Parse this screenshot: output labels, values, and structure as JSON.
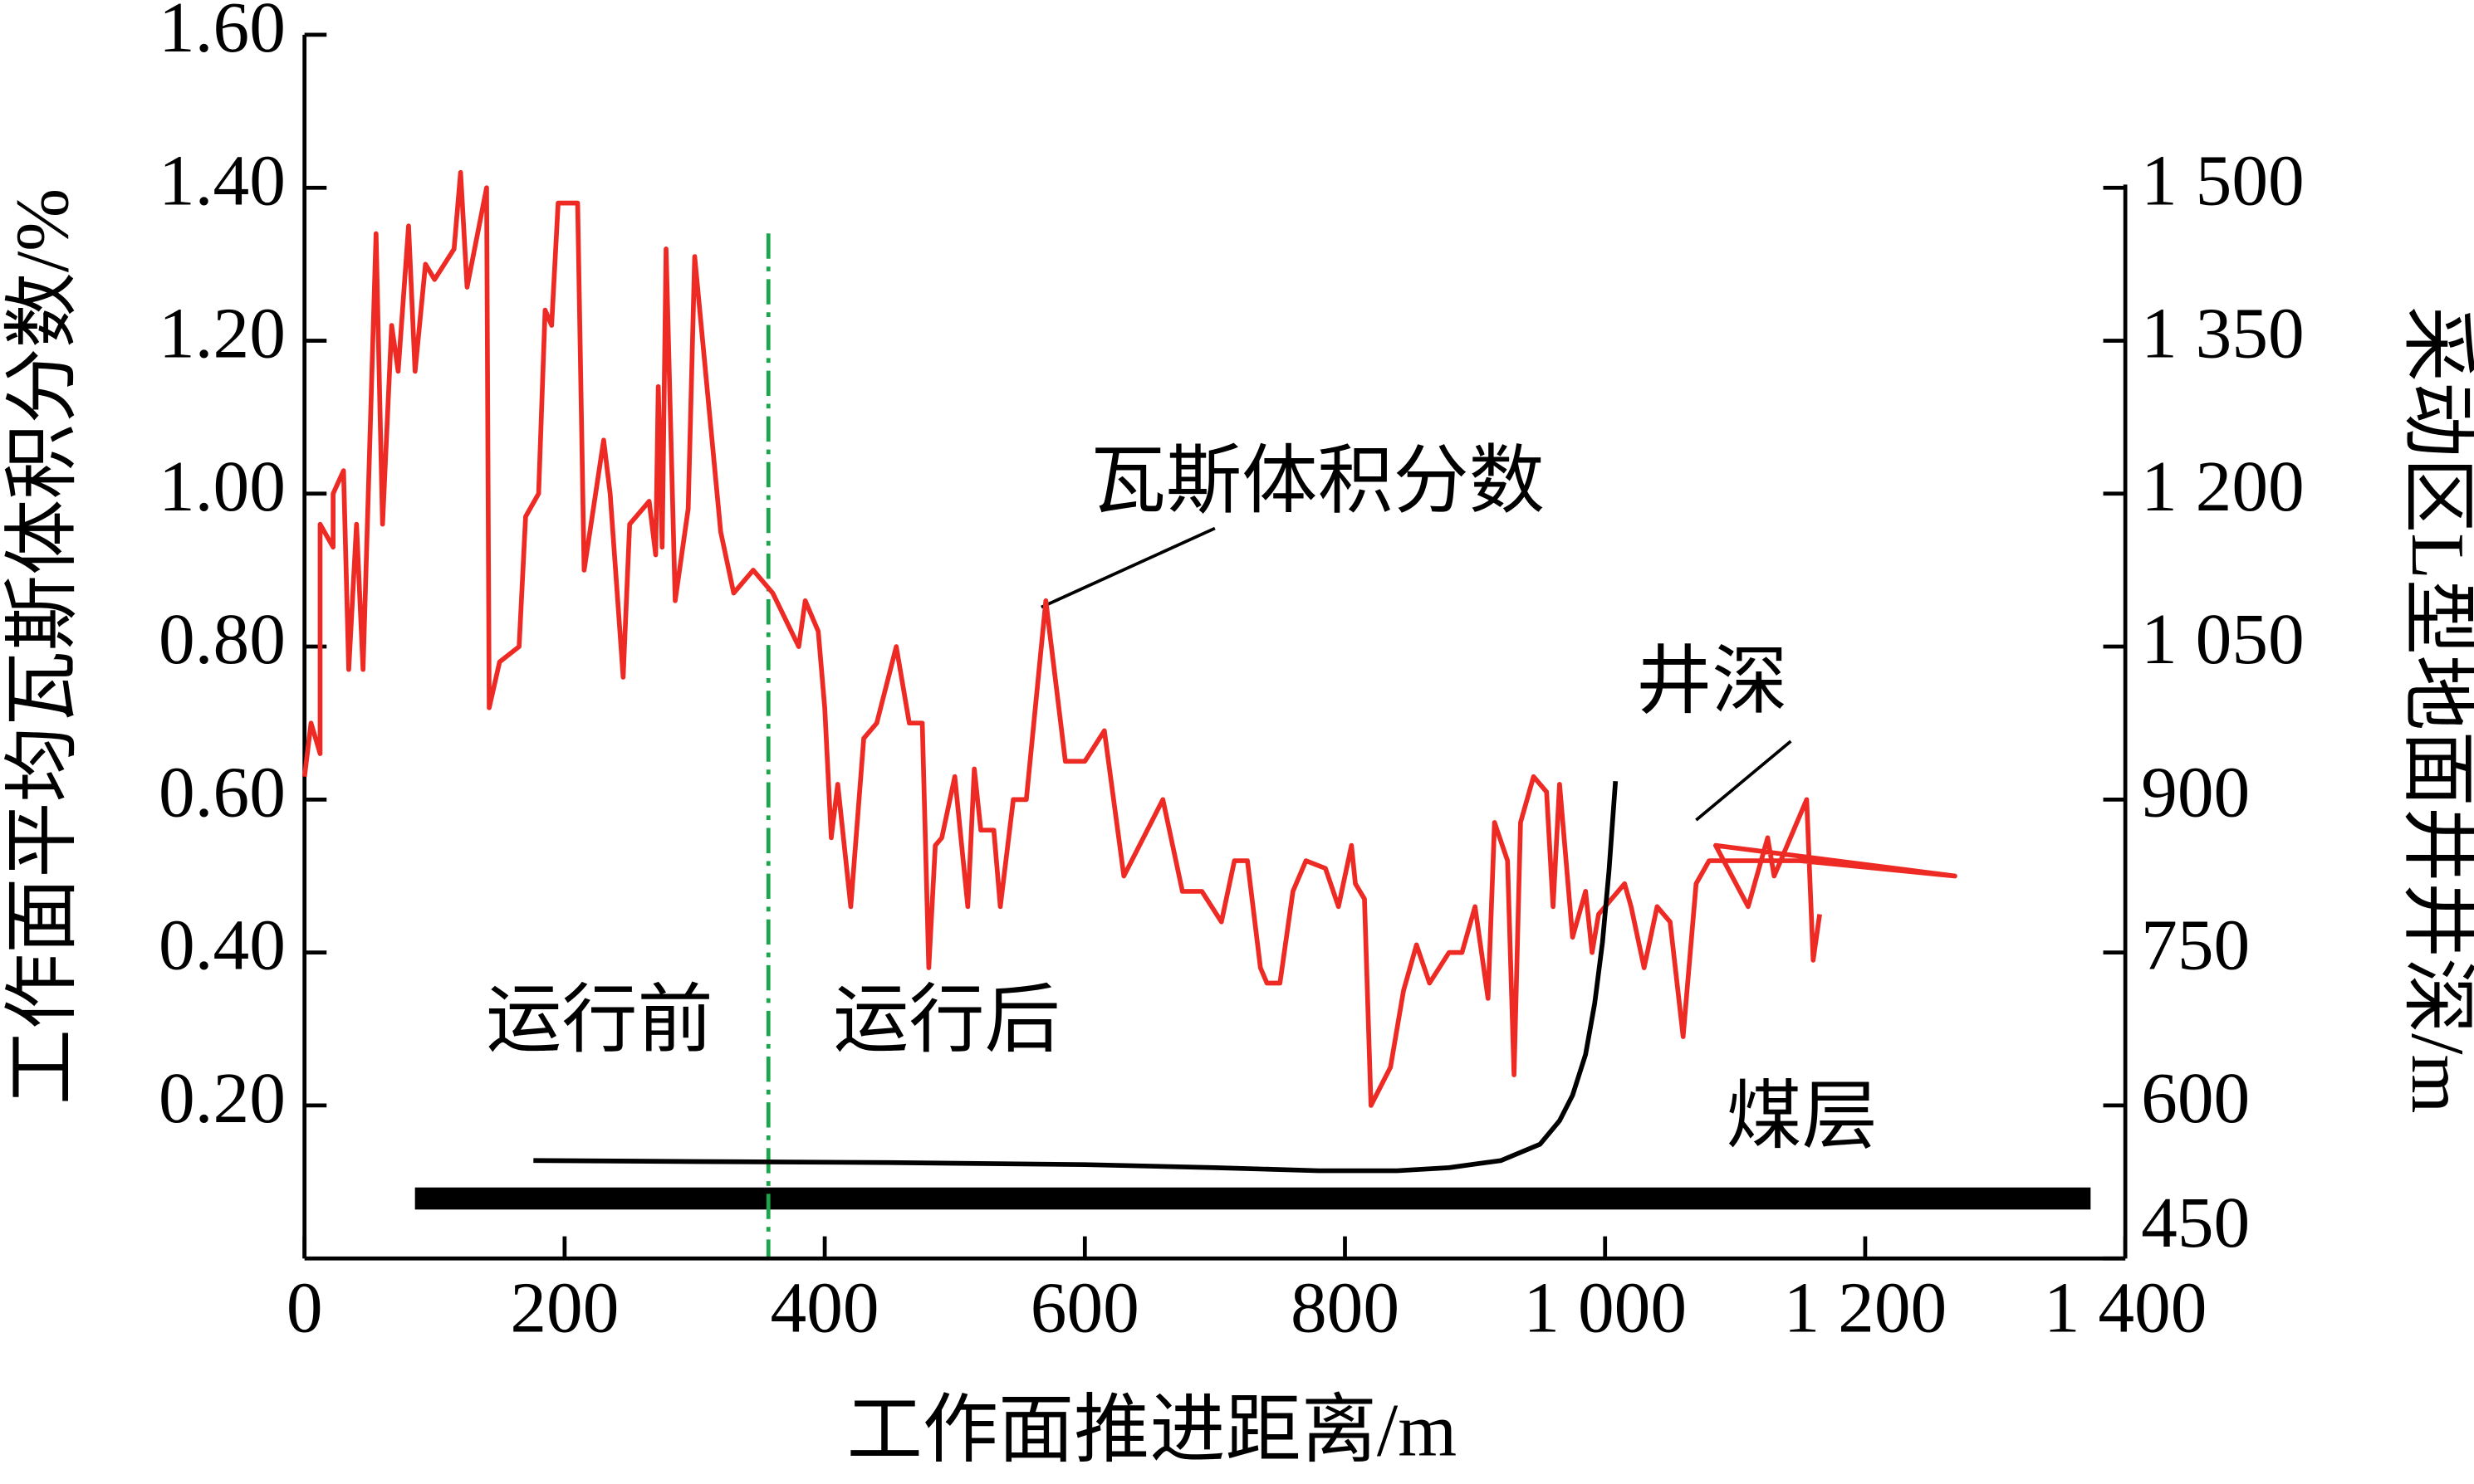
{
  "chart_data": {
    "type": "line",
    "x_label": "工作面推进距离/m",
    "y_label": "工作面平均瓦斯体积分数/%",
    "y2_label": "采动区L型地面井井深/m",
    "annotations": [
      "瓦斯体积分数",
      "井深",
      "运行前",
      "运行后",
      "煤层"
    ],
    "xlim": [
      0,
      1400
    ],
    "xticks": [
      0,
      200,
      400,
      600,
      800,
      {
        "value": 1000,
        "label": "1 000"
      },
      {
        "value": 1200,
        "label": "1 200"
      },
      {
        "value": 1400,
        "label": "1 400"
      }
    ],
    "ylim": [
      0,
      1.6
    ],
    "yticks": [
      {
        "value": 0.2,
        "label": "0.20"
      },
      {
        "value": 0.4,
        "label": "0.40"
      },
      {
        "value": 0.6,
        "label": "0.60"
      },
      {
        "value": 0.8,
        "label": "0.80"
      },
      {
        "value": 1.0,
        "label": "1.00"
      },
      {
        "value": 1.2,
        "label": "1.20"
      },
      {
        "value": 1.4,
        "label": "1.40"
      },
      {
        "value": 1.6,
        "label": "1.60"
      }
    ],
    "y2lim": [
      450,
      1650
    ],
    "y2ticks": [
      450,
      600,
      750,
      900,
      {
        "value": 1050,
        "label": "1 050"
      },
      {
        "value": 1200,
        "label": "1 200"
      },
      {
        "value": 1350,
        "label": "1 350"
      },
      {
        "value": 1500,
        "label": "1 500"
      }
    ],
    "series": [
      {
        "color": "#ee2a24",
        "x": [
          0,
          5,
          12,
          12,
          22,
          22,
          30,
          34,
          40,
          45,
          55,
          60,
          67,
          72,
          80,
          85,
          93,
          100,
          115,
          120,
          125,
          140,
          142,
          150,
          165,
          170,
          180,
          185,
          190,
          195,
          210,
          215,
          230,
          235,
          245,
          250,
          265,
          270,
          272,
          275,
          278,
          285,
          295,
          300,
          320,
          330,
          345,
          360,
          380,
          385,
          395,
          400,
          405,
          410,
          420,
          430,
          440,
          455,
          465,
          475,
          480,
          485,
          490,
          500,
          510,
          515,
          520,
          530,
          535,
          545,
          555,
          570,
          585,
          600,
          615,
          630,
          645,
          660,
          675,
          690,
          705,
          715,
          725,
          735,
          740,
          750,
          760,
          770,
          785,
          795,
          805,
          808,
          815,
          820,
          835,
          845,
          855,
          865,
          880,
          890,
          900,
          910,
          915,
          925,
          930,
          935,
          945,
          955,
          960,
          965,
          975,
          985,
          990,
          995,
          1015,
          1020,
          1030,
          1040,
          1050,
          1060,
          1070,
          1080,
          1150,
          1269,
          1085,
          1110,
          1125,
          1130,
          1150,
          1155,
          1160,
          1165
        ],
        "values": [
          0.63,
          0.7,
          0.66,
          0.96,
          0.93,
          1.0,
          1.03,
          0.77,
          0.96,
          0.77,
          1.34,
          0.96,
          1.22,
          1.16,
          1.35,
          1.16,
          1.3,
          1.28,
          1.32,
          1.42,
          1.27,
          1.4,
          0.72,
          0.78,
          0.8,
          0.97,
          1.0,
          1.24,
          1.22,
          1.38,
          1.38,
          0.9,
          1.07,
          1.0,
          0.76,
          0.96,
          0.99,
          0.92,
          1.14,
          0.93,
          1.32,
          0.86,
          0.98,
          1.31,
          0.95,
          0.87,
          0.9,
          0.87,
          0.8,
          0.86,
          0.82,
          0.72,
          0.55,
          0.62,
          0.46,
          0.68,
          0.7,
          0.8,
          0.7,
          0.7,
          0.38,
          0.54,
          0.55,
          0.63,
          0.46,
          0.64,
          0.56,
          0.56,
          0.46,
          0.6,
          0.6,
          0.86,
          0.65,
          0.65,
          0.69,
          0.5,
          0.55,
          0.6,
          0.48,
          0.48,
          0.44,
          0.52,
          0.52,
          0.38,
          0.36,
          0.36,
          0.48,
          0.52,
          0.51,
          0.46,
          0.54,
          0.49,
          0.47,
          0.2,
          0.25,
          0.35,
          0.41,
          0.36,
          0.4,
          0.4,
          0.46,
          0.34,
          0.57,
          0.52,
          0.24,
          0.57,
          0.63,
          0.61,
          0.46,
          0.62,
          0.42,
          0.48,
          0.4,
          0.45,
          0.49,
          0.46,
          0.38,
          0.46,
          0.44,
          0.29,
          0.49,
          0.52,
          0.52,
          0.5,
          0.54,
          0.46,
          0.55,
          0.5,
          0.58,
          0.6,
          0.39,
          0.45
        ]
      },
      {
        "color": "#000000",
        "axis": "y2",
        "x": [
          176,
          300,
          450,
          600,
          700,
          780,
          840,
          880,
          920,
          950,
          965,
          975,
          985,
          992,
          998,
          1003,
          1008
        ],
        "values": [
          546,
          545,
          544,
          542,
          539,
          536,
          536,
          539,
          546,
          562,
          585,
          610,
          650,
          700,
          760,
          830,
          918
        ]
      }
    ]
  }
}
